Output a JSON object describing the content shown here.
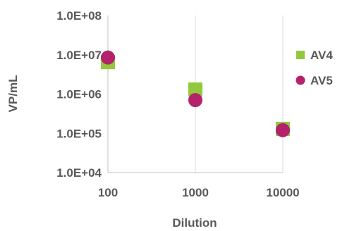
{
  "chart_data": {
    "type": "scatter",
    "title": "",
    "xlabel": "Dilution",
    "ylabel": "VP/mL",
    "x_scale": "log",
    "y_scale": "log",
    "xlim": [
      100,
      10000
    ],
    "ylim": [
      10000,
      100000000
    ],
    "grid": "vertical",
    "legend_position": "right",
    "x_ticks": [
      {
        "value": 100,
        "label": "100"
      },
      {
        "value": 1000,
        "label": "1000"
      },
      {
        "value": 10000,
        "label": "10000"
      }
    ],
    "y_ticks": [
      {
        "value": 10000,
        "label": "1.0E+04"
      },
      {
        "value": 100000,
        "label": "1.0E+05"
      },
      {
        "value": 1000000,
        "label": "1.0E+06"
      },
      {
        "value": 10000000,
        "label": "1.0E+07"
      },
      {
        "value": 100000000,
        "label": "1.0E+08"
      }
    ],
    "series": [
      {
        "name": "AV4",
        "marker": "square",
        "color": "#92C83E",
        "x": [
          100,
          1000,
          10000
        ],
        "y": [
          6500000,
          1300000,
          130000
        ]
      },
      {
        "name": "AV5",
        "marker": "circle",
        "color": "#B5226C",
        "x": [
          100,
          1000,
          10000
        ],
        "y": [
          8500000,
          700000,
          120000
        ]
      }
    ]
  }
}
